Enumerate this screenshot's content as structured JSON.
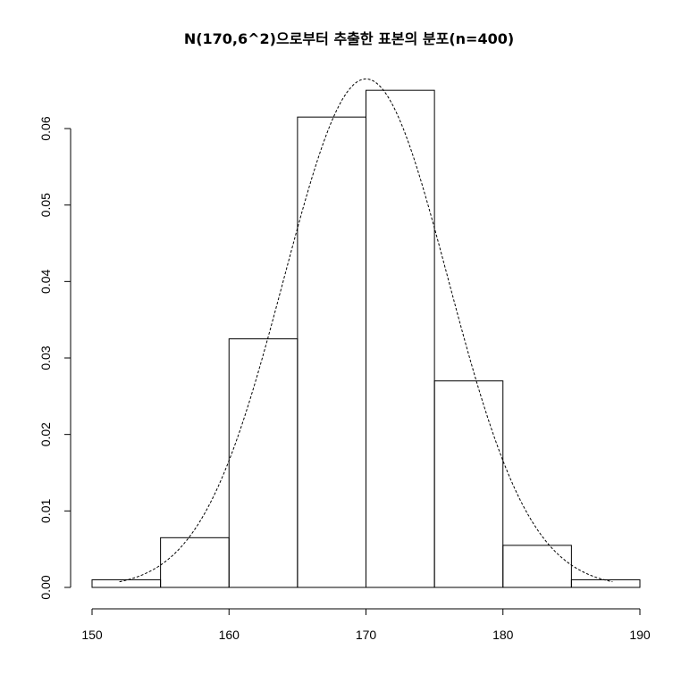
{
  "chart_data": {
    "type": "bar",
    "title": "N(170,6^2)으로부터 추출한 표본의 분포(n=400)",
    "xlabel": "",
    "ylabel": "",
    "bins": [
      {
        "from": 150,
        "to": 155,
        "density": 0.001
      },
      {
        "from": 155,
        "to": 160,
        "density": 0.0065
      },
      {
        "from": 160,
        "to": 165,
        "density": 0.0325
      },
      {
        "from": 165,
        "to": 170,
        "density": 0.0615
      },
      {
        "from": 170,
        "to": 175,
        "density": 0.065
      },
      {
        "from": 175,
        "to": 180,
        "density": 0.027
      },
      {
        "from": 180,
        "to": 185,
        "density": 0.0055
      },
      {
        "from": 185,
        "to": 190,
        "density": 0.001
      }
    ],
    "density_curve": {
      "mean": 170,
      "sd": 6,
      "from": 152,
      "to": 188,
      "style": "dashed"
    },
    "xlim": [
      150,
      190
    ],
    "ylim": [
      0,
      0.06
    ],
    "x_ticks": [
      "150",
      "160",
      "170",
      "180",
      "190"
    ],
    "y_ticks": [
      "0.00",
      "0.01",
      "0.02",
      "0.03",
      "0.04",
      "0.05",
      "0.06"
    ],
    "grid": false,
    "legend": "none"
  }
}
